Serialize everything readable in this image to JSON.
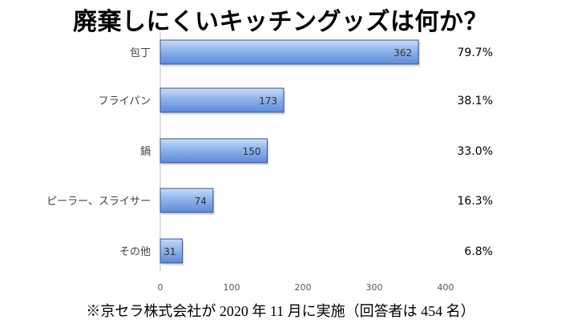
{
  "chart_data": {
    "type": "bar",
    "orientation": "horizontal",
    "title": "廃棄しにくいキッチングッズは何か？",
    "categories": [
      "包丁",
      "フライパン",
      "鍋",
      "ピーラー、スライサー",
      "その他"
    ],
    "values": [
      362,
      173,
      150,
      74,
      31
    ],
    "percent_labels": [
      "79.7%",
      "38.1%",
      "33.0%",
      "16.3%",
      "6.8%"
    ],
    "xlim": [
      0,
      400
    ],
    "x_ticks": [
      "0",
      "100",
      "200",
      "300",
      "400"
    ],
    "grid": false,
    "bar_color": "#7FA6E6",
    "bar_edge_color": "#2F5597"
  },
  "footnote": "※京セラ株式会社が 2020 年 11 月に実施（回答者は 454 名）"
}
